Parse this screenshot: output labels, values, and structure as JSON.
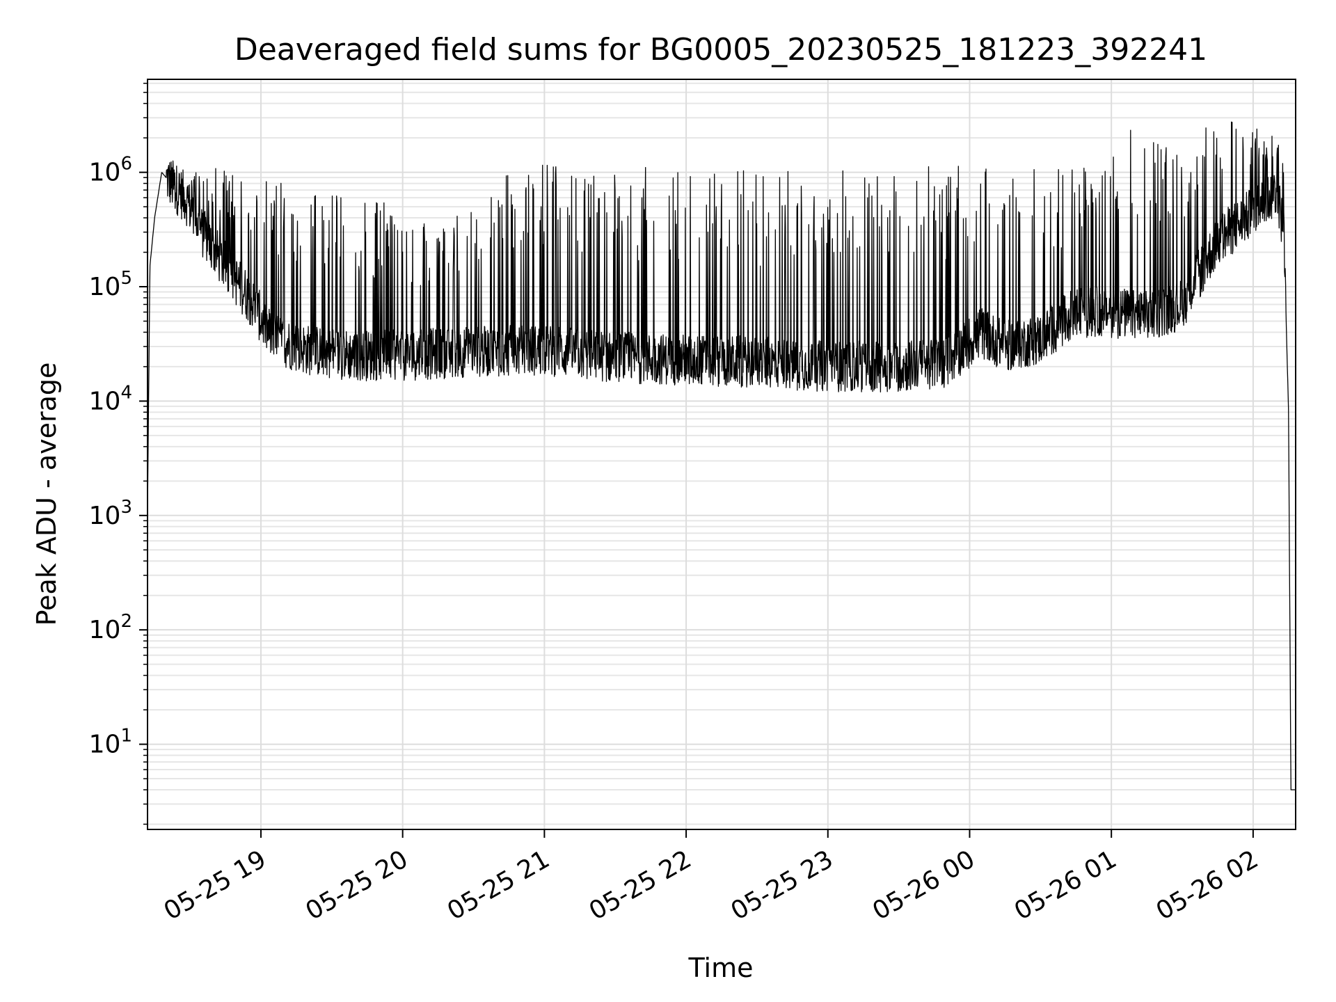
{
  "chart_data": {
    "type": "line",
    "title": "Deaveraged field sums for BG0005_20230525_181223_392241",
    "xlabel": "Time",
    "ylabel": "Peak ADU - average",
    "yscale": "log",
    "ylim": [
      1.8,
      6500000
    ],
    "xlim": [
      "2023-05-25 18:12",
      "2023-05-26 02:18"
    ],
    "grid": true,
    "line_color": "#000000",
    "x_ticks": [
      {
        "t": "2023-05-25 19:00",
        "label": "05-25 19"
      },
      {
        "t": "2023-05-25 20:00",
        "label": "05-25 20"
      },
      {
        "t": "2023-05-25 21:00",
        "label": "05-25 21"
      },
      {
        "t": "2023-05-25 22:00",
        "label": "05-25 22"
      },
      {
        "t": "2023-05-25 23:00",
        "label": "05-25 23"
      },
      {
        "t": "2023-05-26 00:00",
        "label": "05-26 00"
      },
      {
        "t": "2023-05-26 01:00",
        "label": "05-26 01"
      },
      {
        "t": "2023-05-26 02:00",
        "label": "05-26 02"
      }
    ],
    "y_ticks": [
      {
        "value": 10,
        "base": "10",
        "exp": "1"
      },
      {
        "value": 100,
        "base": "10",
        "exp": "2"
      },
      {
        "value": 1000,
        "base": "10",
        "exp": "3"
      },
      {
        "value": 10000,
        "base": "10",
        "exp": "4"
      },
      {
        "value": 100000,
        "base": "10",
        "exp": "5"
      },
      {
        "value": 1000000,
        "base": "10",
        "exp": "6"
      }
    ],
    "series": [
      {
        "baseline_x": [
          "2023-05-25 18:12",
          "2023-05-25 18:13",
          "2023-05-25 18:15",
          "2023-05-25 18:18",
          "2023-05-25 18:22",
          "2023-05-25 18:28",
          "2023-05-25 18:35",
          "2023-05-25 18:45",
          "2023-05-25 18:55",
          "2023-05-25 19:05",
          "2023-05-25 19:20",
          "2023-05-25 19:40",
          "2023-05-25 20:00",
          "2023-05-25 20:30",
          "2023-05-25 21:00",
          "2023-05-25 21:30",
          "2023-05-25 22:00",
          "2023-05-25 22:30",
          "2023-05-25 23:00",
          "2023-05-25 23:30",
          "2023-05-25 23:50",
          "2023-05-26 00:05",
          "2023-05-26 00:15",
          "2023-05-26 00:30",
          "2023-05-26 00:45",
          "2023-05-26 01:00",
          "2023-05-26 01:15",
          "2023-05-26 01:30",
          "2023-05-26 01:45",
          "2023-05-26 02:00",
          "2023-05-26 02:10",
          "2023-05-26 02:13",
          "2023-05-26 02:15",
          "2023-05-26 02:16",
          "2023-05-26 02:18"
        ],
        "baseline_y": [
          1000,
          150000,
          400000,
          1000000,
          800000,
          600000,
          300000,
          150000,
          80000,
          35000,
          28000,
          25000,
          25000,
          27000,
          28000,
          24000,
          23000,
          22000,
          20000,
          20000,
          22000,
          40000,
          30000,
          35000,
          60000,
          60000,
          55000,
          70000,
          250000,
          450000,
          700000,
          300000,
          8000,
          4,
          4
        ],
        "spike_x": [
          "2023-05-25 18:45",
          "2023-05-25 18:50",
          "2023-05-25 19:10",
          "2023-05-25 19:30",
          "2023-05-25 19:50",
          "2023-05-25 20:20",
          "2023-05-25 20:35",
          "2023-05-25 20:45",
          "2023-05-25 21:00",
          "2023-05-25 21:25",
          "2023-05-25 21:40",
          "2023-05-25 21:55",
          "2023-05-25 22:10",
          "2023-05-25 22:40",
          "2023-05-25 22:50",
          "2023-05-25 23:10",
          "2023-05-25 23:20",
          "2023-05-25 23:40",
          "2023-05-26 00:00",
          "2023-05-26 00:10",
          "2023-05-26 00:30",
          "2023-05-26 00:55",
          "2023-05-26 01:10",
          "2023-05-26 01:35",
          "2023-05-26 01:40",
          "2023-05-26 02:01",
          "2023-05-26 02:05"
        ],
        "spike_y": [
          1000000,
          900000,
          700000,
          600000,
          500000,
          300000,
          900000,
          1000000,
          1000000,
          900000,
          950000,
          1000000,
          900000,
          900000,
          900000,
          900000,
          900000,
          900000,
          1000000,
          900000,
          1000000,
          1000000,
          2500000,
          1000000,
          3400000,
          2300000,
          2200000
        ]
      }
    ]
  }
}
